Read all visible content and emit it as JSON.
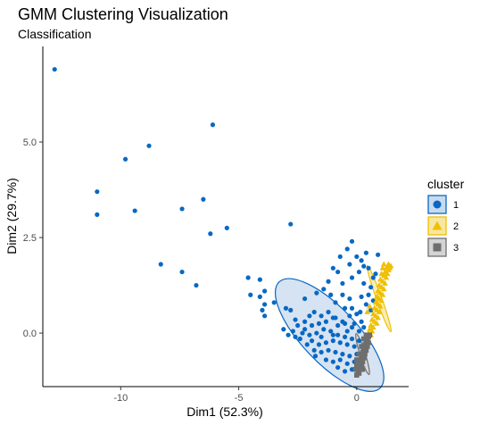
{
  "chart_data": {
    "type": "scatter",
    "title": "GMM Clustering Visualization",
    "subtitle": "Classification",
    "xlabel": "Dim1 (52.3%)",
    "ylabel": "Dim2 (29.7%)",
    "xlim": [
      -13.3,
      2.2
    ],
    "ylim": [
      -1.4,
      7.5
    ],
    "x_ticks": [
      -10,
      -5,
      0
    ],
    "x_tick_labels": [
      "-10",
      "-5",
      "0"
    ],
    "y_ticks": [
      0.0,
      2.5,
      5.0
    ],
    "y_tick_labels": [
      "0.0",
      "2.5",
      "5.0"
    ],
    "grid": false,
    "legend": {
      "title": "cluster",
      "position": "right",
      "entries": [
        {
          "label": "1",
          "shape": "circle",
          "color": "#0868C4",
          "fill": "#C8DAEE"
        },
        {
          "label": "2",
          "shape": "triangle",
          "color": "#EFC000",
          "fill": "#F8E7A2"
        },
        {
          "label": "3",
          "shape": "square",
          "color": "#6E6E6E",
          "fill": "#D4D4D4"
        }
      ]
    },
    "series": [
      {
        "name": "1",
        "color": "#0868C4",
        "shape": "circle",
        "points": [
          [
            -12.8,
            6.9
          ],
          [
            -6.1,
            5.45
          ],
          [
            -8.8,
            4.9
          ],
          [
            -9.8,
            4.55
          ],
          [
            -11.0,
            3.7
          ],
          [
            -6.5,
            3.5
          ],
          [
            -11.0,
            3.1
          ],
          [
            -9.4,
            3.2
          ],
          [
            -7.4,
            3.25
          ],
          [
            -2.8,
            2.85
          ],
          [
            -5.5,
            2.75
          ],
          [
            -6.2,
            2.6
          ],
          [
            -8.3,
            1.8
          ],
          [
            -7.4,
            1.6
          ],
          [
            -6.8,
            1.25
          ],
          [
            -4.6,
            1.45
          ],
          [
            -4.1,
            1.4
          ],
          [
            -3.9,
            1.1
          ],
          [
            -4.5,
            1.0
          ],
          [
            -4.1,
            0.95
          ],
          [
            -3.9,
            0.75
          ],
          [
            -3.5,
            0.8
          ],
          [
            -4.0,
            0.6
          ],
          [
            -3.0,
            0.65
          ],
          [
            -3.9,
            0.45
          ],
          [
            -2.8,
            0.6
          ],
          [
            -2.2,
            0.9
          ],
          [
            -1.7,
            1.05
          ],
          [
            -1.4,
            1.15
          ],
          [
            -1.1,
            1.0
          ],
          [
            -0.9,
            0.8
          ],
          [
            -0.6,
            1.0
          ],
          [
            -1.2,
            1.35
          ],
          [
            -0.8,
            1.6
          ],
          [
            -1.0,
            1.7
          ],
          [
            -0.7,
            2.0
          ],
          [
            -0.4,
            2.2
          ],
          [
            -0.3,
            1.8
          ],
          [
            -0.2,
            2.4
          ],
          [
            0.0,
            2.0
          ],
          [
            0.2,
            1.9
          ],
          [
            0.3,
            1.75
          ],
          [
            0.4,
            2.1
          ],
          [
            0.5,
            1.7
          ],
          [
            0.1,
            1.6
          ],
          [
            -0.2,
            1.45
          ],
          [
            0.3,
            1.3
          ],
          [
            0.6,
            1.2
          ],
          [
            0.7,
            1.45
          ],
          [
            0.5,
            1.0
          ],
          [
            0.8,
            1.55
          ],
          [
            0.9,
            2.05
          ],
          [
            0.2,
            0.95
          ],
          [
            0.4,
            0.75
          ],
          [
            0.6,
            0.6
          ],
          [
            0.7,
            0.85
          ],
          [
            -0.5,
            0.65
          ],
          [
            -0.3,
            0.45
          ],
          [
            0.0,
            0.5
          ],
          [
            0.2,
            0.3
          ],
          [
            0.1,
            0.05
          ],
          [
            -0.2,
            0.15
          ],
          [
            -0.5,
            0.25
          ],
          [
            -0.8,
            0.2
          ],
          [
            -1.0,
            0.4
          ],
          [
            -1.3,
            0.3
          ],
          [
            -1.6,
            0.25
          ],
          [
            -1.9,
            0.2
          ],
          [
            -2.2,
            0.3
          ],
          [
            -2.5,
            0.2
          ],
          [
            -2.7,
            0.05
          ],
          [
            -2.9,
            -0.05
          ],
          [
            -2.6,
            -0.1
          ],
          [
            -2.3,
            0.0
          ],
          [
            -2.0,
            -0.05
          ],
          [
            -1.7,
            0.0
          ],
          [
            -1.4,
            0.1
          ],
          [
            -1.1,
            0.05
          ],
          [
            -0.8,
            -0.05
          ],
          [
            -0.5,
            -0.1
          ],
          [
            -0.2,
            -0.15
          ],
          [
            0.1,
            -0.2
          ],
          [
            -0.1,
            -0.35
          ],
          [
            -0.4,
            -0.3
          ],
          [
            -0.7,
            -0.25
          ],
          [
            -1.0,
            -0.2
          ],
          [
            -1.3,
            -0.25
          ],
          [
            -1.6,
            -0.3
          ],
          [
            -1.9,
            -0.2
          ],
          [
            -2.1,
            -0.3
          ],
          [
            -1.8,
            -0.45
          ],
          [
            -1.5,
            -0.5
          ],
          [
            -1.2,
            -0.45
          ],
          [
            -0.9,
            -0.5
          ],
          [
            -0.6,
            -0.55
          ],
          [
            -0.3,
            -0.6
          ],
          [
            0.0,
            -0.55
          ],
          [
            -0.1,
            -0.75
          ],
          [
            -0.4,
            -0.8
          ],
          [
            -0.7,
            -0.7
          ],
          [
            -1.0,
            -0.75
          ],
          [
            -1.3,
            -0.7
          ],
          [
            -0.2,
            -0.95
          ],
          [
            -0.5,
            -1.0
          ],
          [
            -0.8,
            -0.9
          ],
          [
            -2.4,
            -0.15
          ],
          [
            -2.2,
            0.1
          ],
          [
            -1.5,
            0.45
          ],
          [
            -1.2,
            0.55
          ],
          [
            -0.9,
            0.4
          ],
          [
            -0.6,
            0.3
          ],
          [
            -1.8,
            0.55
          ],
          [
            -2.0,
            0.45
          ],
          [
            -0.3,
            0.9
          ],
          [
            -0.6,
            1.3
          ],
          [
            -1.5,
            -0.1
          ],
          [
            -1.0,
            -0.05
          ],
          [
            -0.4,
            0.05
          ],
          [
            -0.1,
            0.25
          ],
          [
            0.3,
            0.15
          ],
          [
            -0.2,
            0.65
          ],
          [
            0.15,
            0.55
          ],
          [
            -2.6,
            0.35
          ],
          [
            -3.1,
            0.1
          ],
          [
            -1.75,
            -0.6
          ]
        ]
      },
      {
        "name": "2",
        "color": "#EFC000",
        "shape": "triangle",
        "points": [
          [
            1.3,
            1.75
          ],
          [
            1.25,
            1.7
          ],
          [
            1.35,
            1.65
          ],
          [
            1.15,
            1.8
          ],
          [
            1.2,
            1.6
          ],
          [
            1.3,
            1.55
          ],
          [
            1.1,
            1.7
          ],
          [
            1.15,
            1.5
          ],
          [
            1.25,
            1.45
          ],
          [
            1.05,
            1.55
          ],
          [
            1.1,
            1.35
          ],
          [
            1.2,
            1.3
          ],
          [
            1.0,
            1.4
          ],
          [
            1.05,
            1.2
          ],
          [
            1.15,
            1.15
          ],
          [
            0.95,
            1.25
          ],
          [
            1.0,
            1.05
          ],
          [
            1.1,
            1.0
          ],
          [
            0.9,
            1.1
          ],
          [
            0.95,
            0.9
          ],
          [
            1.05,
            0.85
          ],
          [
            0.85,
            0.95
          ],
          [
            0.9,
            0.75
          ],
          [
            1.0,
            0.7
          ],
          [
            0.8,
            0.8
          ],
          [
            0.85,
            0.6
          ],
          [
            0.95,
            0.55
          ],
          [
            0.75,
            0.65
          ],
          [
            0.8,
            0.45
          ],
          [
            0.9,
            0.4
          ],
          [
            0.7,
            0.5
          ],
          [
            0.75,
            0.3
          ],
          [
            0.85,
            0.25
          ],
          [
            0.65,
            0.35
          ],
          [
            0.7,
            0.15
          ],
          [
            0.6,
            0.2
          ],
          [
            0.65,
            0.05
          ],
          [
            0.55,
            0.1
          ],
          [
            0.6,
            -0.05
          ],
          [
            0.5,
            0.0
          ],
          [
            1.4,
            1.7
          ],
          [
            1.35,
            1.8
          ],
          [
            1.45,
            1.75
          ],
          [
            0.45,
            0.55
          ],
          [
            0.55,
            0.7
          ]
        ]
      },
      {
        "name": "3",
        "color": "#6E6E6E",
        "shape": "square",
        "points": [
          [
            0.55,
            -0.05
          ],
          [
            0.5,
            -0.1
          ],
          [
            0.45,
            -0.15
          ],
          [
            0.4,
            -0.2
          ],
          [
            0.5,
            -0.25
          ],
          [
            0.35,
            -0.3
          ],
          [
            0.45,
            -0.35
          ],
          [
            0.3,
            -0.4
          ],
          [
            0.4,
            -0.45
          ],
          [
            0.25,
            -0.5
          ],
          [
            0.35,
            -0.55
          ],
          [
            0.2,
            -0.6
          ],
          [
            0.3,
            -0.65
          ],
          [
            0.15,
            -0.7
          ],
          [
            0.25,
            -0.75
          ],
          [
            0.1,
            -0.8
          ],
          [
            0.2,
            -0.85
          ],
          [
            0.05,
            -0.9
          ],
          [
            0.15,
            -0.95
          ],
          [
            0.0,
            -0.85
          ],
          [
            0.05,
            -1.0
          ],
          [
            0.1,
            -1.05
          ],
          [
            0.0,
            -0.7
          ],
          [
            0.1,
            -0.55
          ],
          [
            0.2,
            -0.35
          ],
          [
            0.3,
            -0.15
          ],
          [
            0.4,
            -0.05
          ],
          [
            0.0,
            -1.1
          ],
          [
            -0.05,
            -0.95
          ],
          [
            0.25,
            -0.95
          ]
        ]
      }
    ],
    "ellipses": [
      {
        "series": "1",
        "cx": -1.15,
        "cy": -0.05,
        "rx": 2.55,
        "ry": 0.8,
        "angle_deg": -33,
        "stroke": "#0868C4",
        "fill": "#C8DAEE"
      },
      {
        "series": "2",
        "cx": 0.95,
        "cy": 0.9,
        "rx": 1.0,
        "ry": 0.08,
        "angle_deg": -60,
        "stroke": "#EFC000",
        "fill": "#F8E7A2"
      },
      {
        "series": "3",
        "cx": 0.25,
        "cy": -0.55,
        "rx": 0.6,
        "ry": 0.07,
        "angle_deg": -63,
        "stroke": "#6E6E6E",
        "fill": "#D4D4D4"
      }
    ]
  }
}
